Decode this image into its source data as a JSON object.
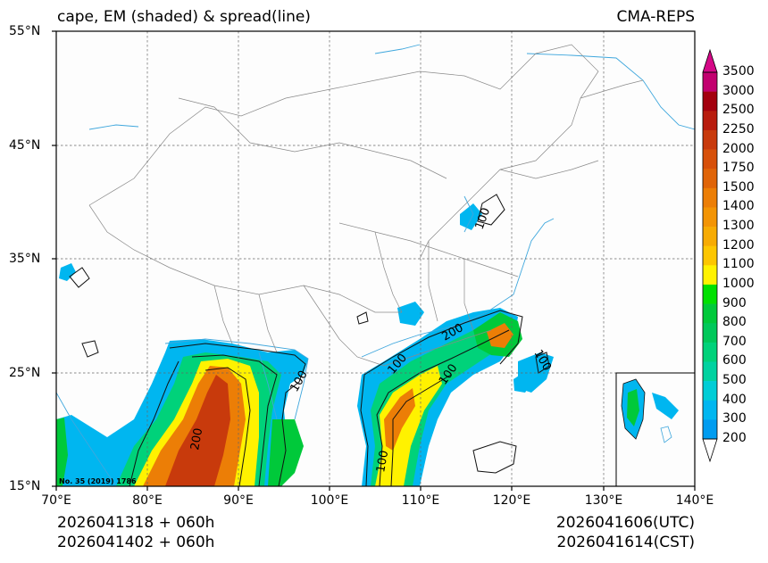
{
  "title": {
    "left": "cape, EM (shaded) & spread(line)",
    "right": "CMA-REPS"
  },
  "lat_labels": [
    "55°N",
    "45°N",
    "35°N",
    "25°N",
    "15°N"
  ],
  "lon_labels": [
    "70°E",
    "80°E",
    "90°E",
    "100°E",
    "110°E",
    "120°E",
    "130°E",
    "140°E"
  ],
  "colorbar": {
    "labels": [
      "3500",
      "3000",
      "2500",
      "2250",
      "2000",
      "1750",
      "1500",
      "1400",
      "1300",
      "1200",
      "1100",
      "1000",
      "900",
      "800",
      "700",
      "600",
      "500",
      "400",
      "300",
      "200"
    ],
    "colors": [
      "#c2006f",
      "#a3000e",
      "#b81c0e",
      "#c83a0c",
      "#d7500a",
      "#e06408",
      "#ec7e06",
      "#f39404",
      "#f7ab02",
      "#fdc600",
      "#fff200",
      "#00e000",
      "#00c93a",
      "#00c85a",
      "#00d27a",
      "#00d2a0",
      "#00cdd6",
      "#00b6f0",
      "#009cf0"
    ],
    "top_triangle_color": "#d50887",
    "bottom_triangle_color": "#ffffff"
  },
  "contour_labels": [
    "100",
    "100",
    "100",
    "200",
    "200",
    "100",
    "100",
    "100"
  ],
  "approval_no": "No. 35 (2019) 1786",
  "footer": {
    "init_utc": "2026041318  +  060h",
    "init_cst": "2026041402  +  060h",
    "valid_utc": "2026041606(UTC)",
    "valid_cst": "2026041614(CST)"
  }
}
